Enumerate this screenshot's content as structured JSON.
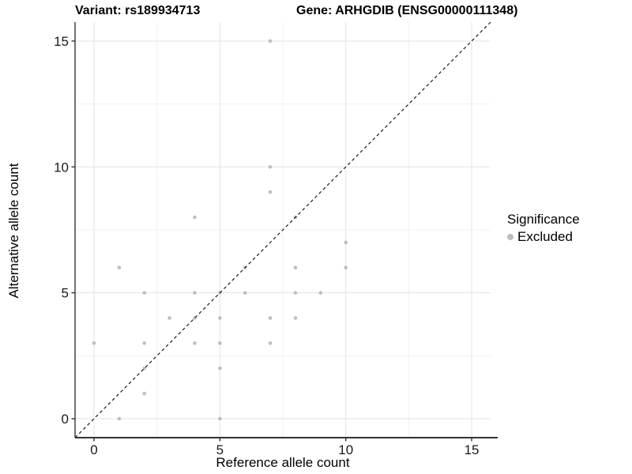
{
  "header": {
    "title_left": "Variant: rs189934713",
    "title_right": "Gene: ARHGDIB (ENSG00000111348)"
  },
  "chart_data": {
    "type": "scatter",
    "title": "Variant: rs189934713 / Gene: ARHGDIB (ENSG00000111348)",
    "xlabel": "Reference allele count",
    "ylabel": "Alternative allele count",
    "xlim": [
      -0.75,
      15.75
    ],
    "ylim": [
      -0.75,
      15.75
    ],
    "x_ticks": [
      0,
      5,
      10,
      15
    ],
    "y_ticks": [
      0,
      5,
      10,
      15
    ],
    "x_minor_ticks": [
      2.5,
      7.5,
      12.5
    ],
    "y_minor_ticks": [
      2.5,
      7.5,
      12.5
    ],
    "grid": "major+minor",
    "legend_position": "right",
    "series": [
      {
        "name": "Excluded",
        "color": "#bebebe",
        "points": [
          [
            0,
            3
          ],
          [
            1,
            0
          ],
          [
            1,
            6
          ],
          [
            2,
            1
          ],
          [
            2,
            2
          ],
          [
            2,
            3
          ],
          [
            2,
            5
          ],
          [
            3,
            4
          ],
          [
            4,
            3
          ],
          [
            4,
            4
          ],
          [
            4,
            5
          ],
          [
            4,
            8
          ],
          [
            5,
            0
          ],
          [
            5,
            2
          ],
          [
            5,
            3
          ],
          [
            5,
            4
          ],
          [
            5,
            5
          ],
          [
            6,
            5
          ],
          [
            6,
            6
          ],
          [
            7,
            3
          ],
          [
            7,
            4
          ],
          [
            7,
            9
          ],
          [
            7,
            10
          ],
          [
            7,
            15
          ],
          [
            8,
            4
          ],
          [
            8,
            5
          ],
          [
            8,
            6
          ],
          [
            8,
            8
          ],
          [
            9,
            5
          ],
          [
            10,
            6
          ],
          [
            10,
            7
          ]
        ]
      }
    ],
    "reference_line": {
      "kind": "identity y=x",
      "style": "dashed",
      "color": "#1a1a1a"
    }
  },
  "legend": {
    "title": "Significance",
    "entries": [
      {
        "label": "Excluded",
        "color": "#bebebe"
      }
    ]
  },
  "style": {
    "point_color": "#bebebe",
    "grid_major_color": "#e3e3e3",
    "grid_minor_color": "#f1f1f1",
    "axis_line_color": "#333333",
    "tick_text_color": "#1a1a1a",
    "dash_color": "#1a1a1a"
  }
}
